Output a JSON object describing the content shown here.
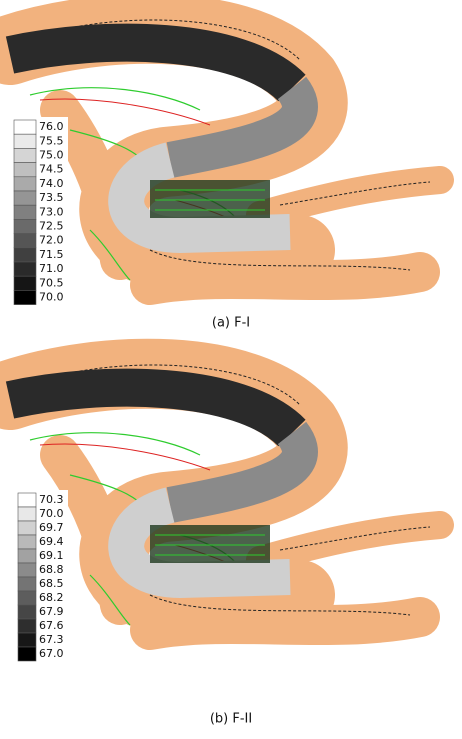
{
  "panels": [
    {
      "caption": "(a) F-I",
      "legend": [
        "76.0",
        "75.5",
        "75.0",
        "74.5",
        "74.0",
        "73.5",
        "73.0",
        "72.5",
        "72.0",
        "71.5",
        "71.0",
        "70.5",
        "70.0"
      ]
    },
    {
      "caption": "(b) F-II",
      "legend": [
        "70.3",
        "70.0",
        "69.7",
        "69.4",
        "69.1",
        "68.8",
        "68.5",
        "68.2",
        "67.9",
        "67.6",
        "67.3",
        "67.0"
      ]
    }
  ]
}
